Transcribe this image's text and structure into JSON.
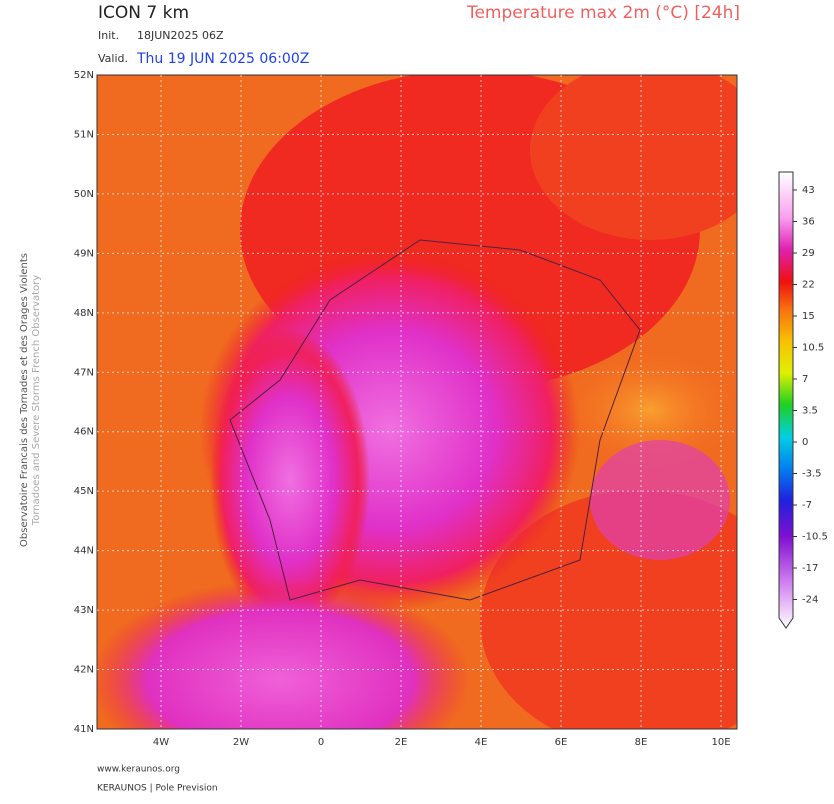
{
  "header": {
    "model": "ICON 7 km",
    "parameter": "Temperature max 2m (°C) [24h]",
    "init_label": "Init.",
    "init_value": "18JUN2025 06Z",
    "valid_label": "Valid.",
    "valid_value": "Thu 19 JUN 2025 06:00Z"
  },
  "map": {
    "lat_labels": [
      "52N",
      "51N",
      "50N",
      "49N",
      "48N",
      "47N",
      "46N",
      "45N",
      "44N",
      "43N",
      "42N",
      "41N"
    ],
    "lon_labels": [
      "4W",
      "2W",
      "0",
      "2E",
      "4E",
      "6E",
      "8E",
      "10E"
    ]
  },
  "colorbar": {
    "labels": [
      "43",
      "36",
      "29",
      "22",
      "15",
      "10.5",
      "7",
      "3.5",
      "0",
      "-3.5",
      "-7",
      "-10.5",
      "-17",
      "-24"
    ]
  },
  "side": {
    "line1": "Observatoire Francais des Tornades et des Orages Violents",
    "line2": "Tornadoes and Severe Storms French Observatory"
  },
  "footer": {
    "website": "www.keraunos.org",
    "credit": "KERAUNOS | Pole Prevision"
  }
}
